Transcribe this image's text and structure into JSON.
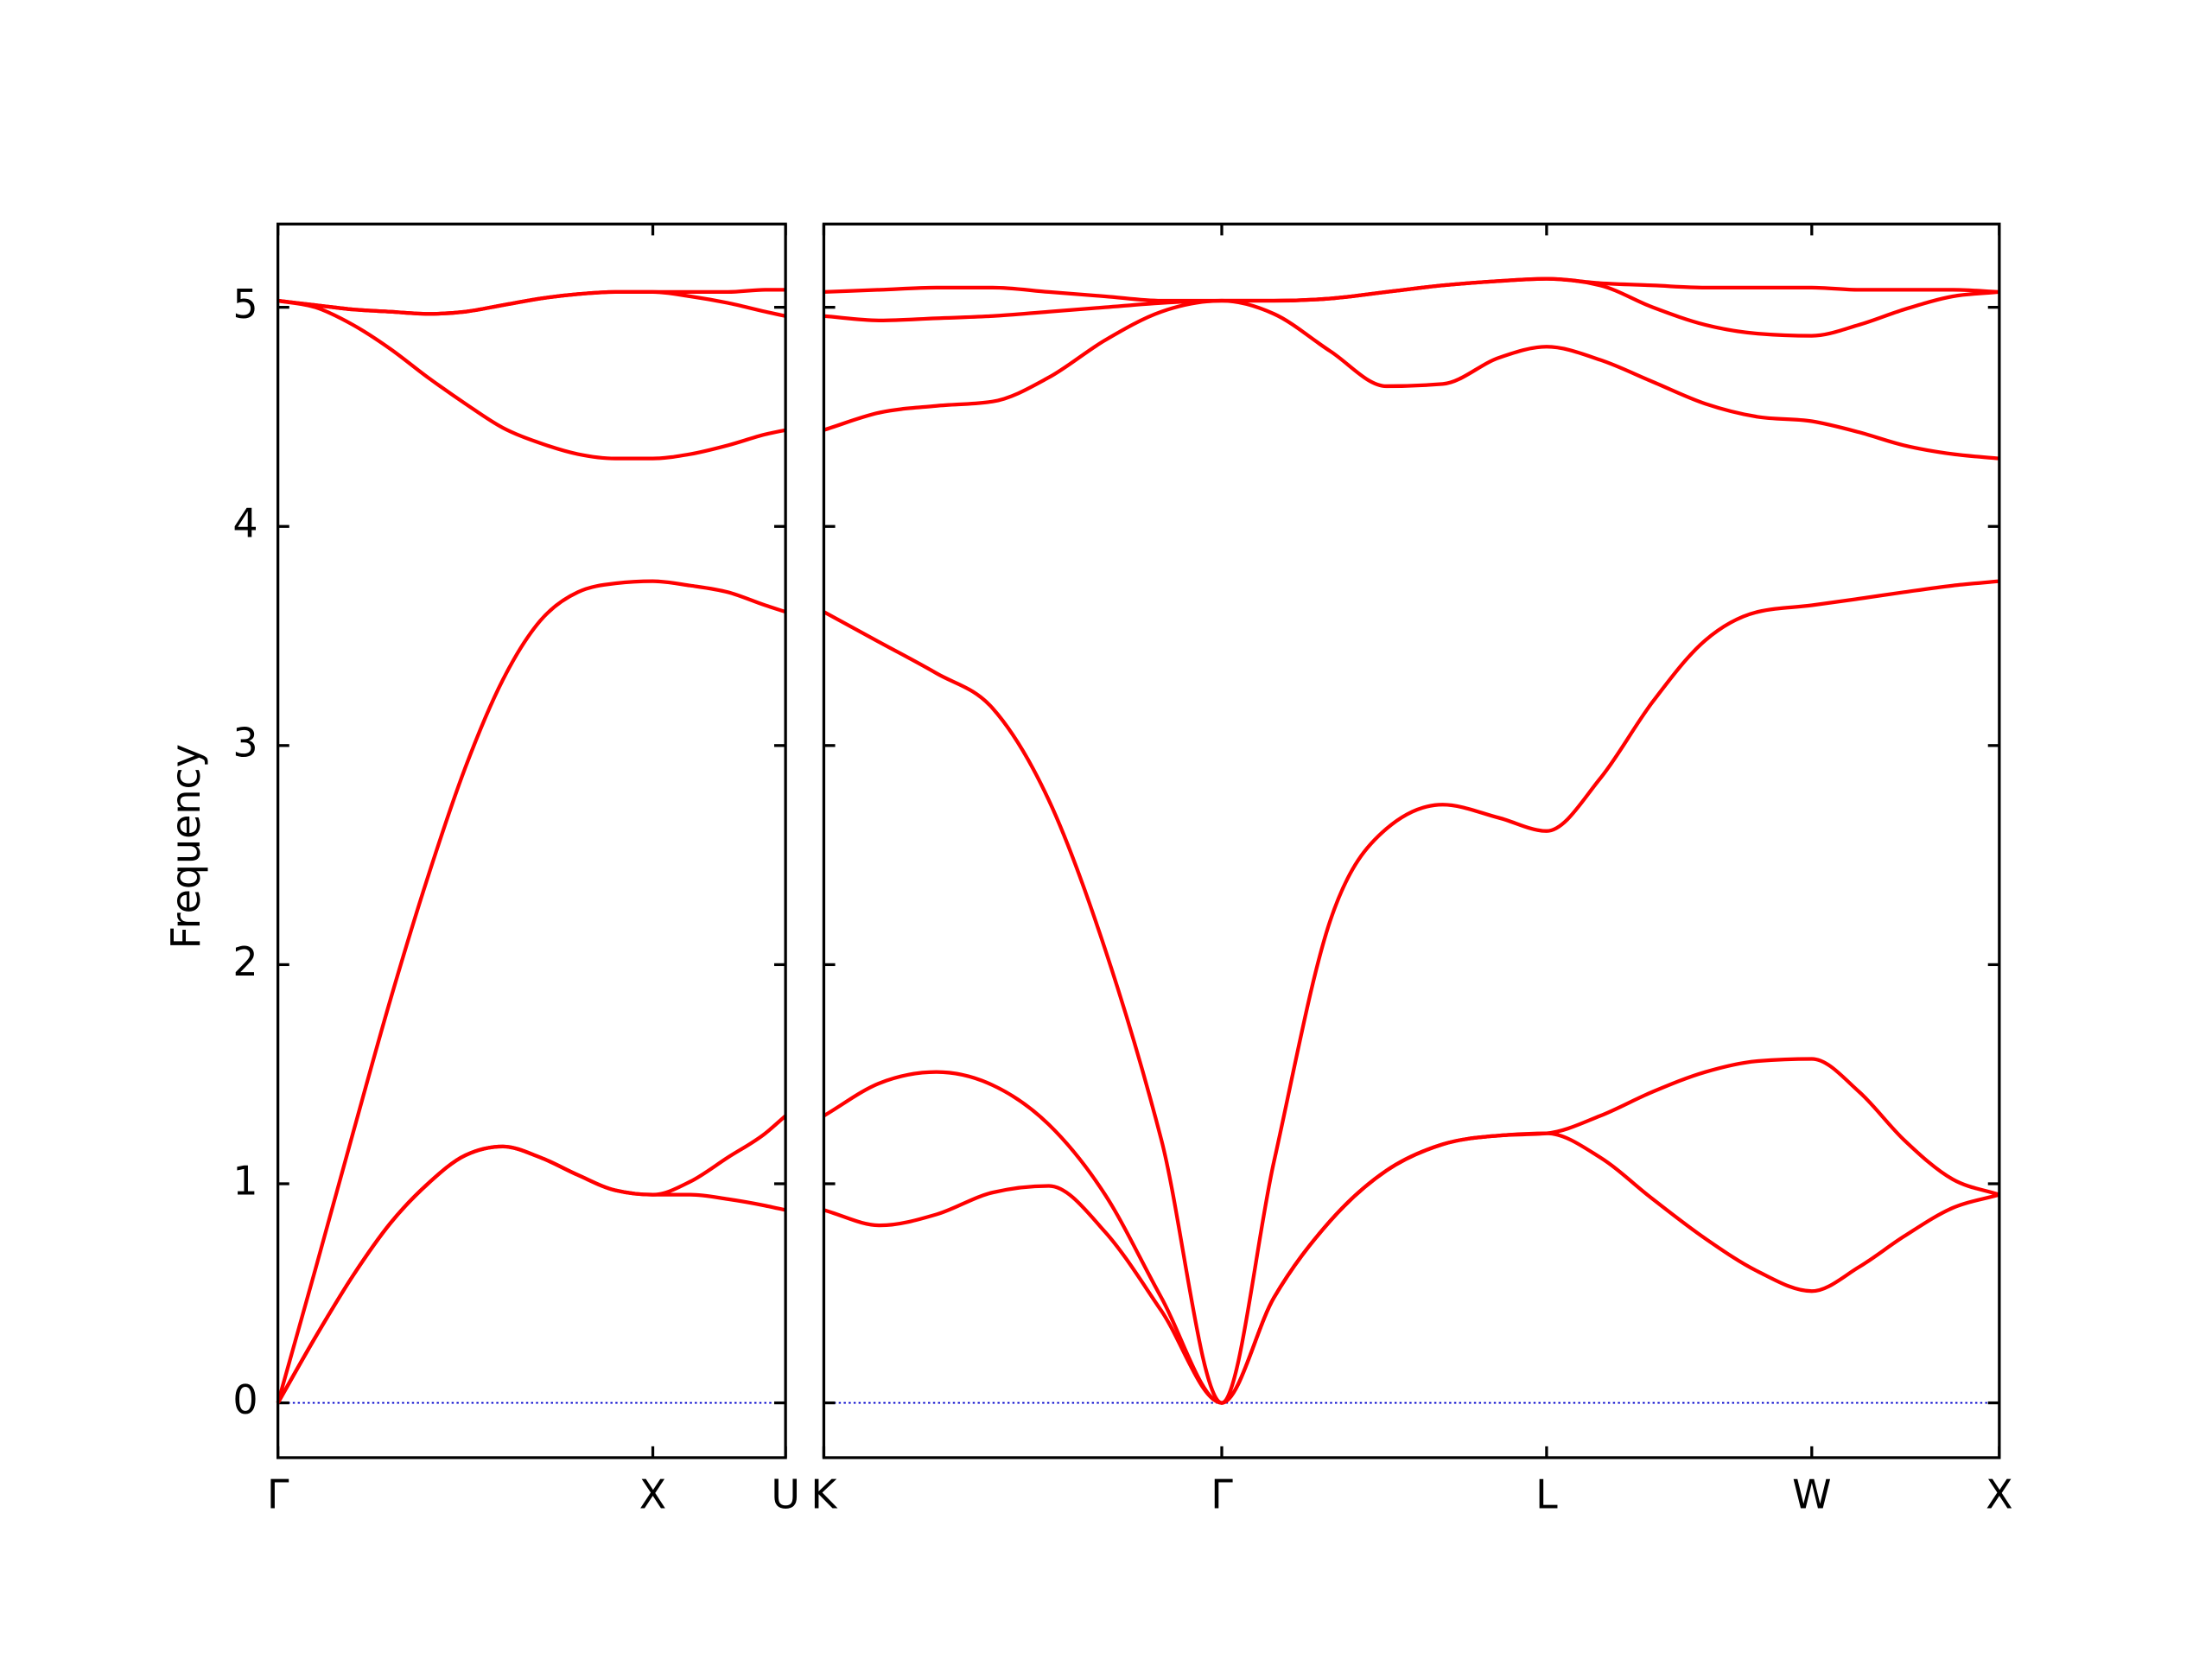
{
  "chart_data": [
    {
      "type": "line",
      "ylabel": "Frequency",
      "color": "#ff0000",
      "zero_line_color": "#0000cc",
      "ytick_labels": true,
      "x": [
        0,
        0.1,
        0.2,
        0.3,
        0.4,
        0.5,
        0.6,
        0.7,
        0.8,
        0.9,
        1,
        1.1,
        1.2,
        1.3,
        1.354
      ],
      "xlim": [
        0,
        1.354
      ],
      "ylim": [
        -0.25,
        5.38
      ],
      "xticks": [
        {
          "value": 0,
          "label": "Γ"
        },
        {
          "value": 1,
          "label": "X"
        },
        {
          "value": 1.354,
          "label": "U"
        }
      ],
      "yticks": [
        0,
        1,
        2,
        3,
        4,
        5
      ],
      "series": [
        {
          "values": [
            0,
            0.3,
            0.58,
            0.82,
            1.0,
            1.13,
            1.17,
            1.12,
            1.04,
            0.97,
            0.95,
            0.95,
            0.93,
            0.9,
            0.88
          ]
        },
        {
          "values": [
            0,
            0.3,
            0.58,
            0.82,
            1.0,
            1.13,
            1.17,
            1.12,
            1.04,
            0.97,
            0.95,
            1.01,
            1.12,
            1.23,
            1.31
          ]
        },
        {
          "values": [
            0,
            0.61,
            1.23,
            1.84,
            2.4,
            2.9,
            3.3,
            3.57,
            3.7,
            3.74,
            3.75,
            3.73,
            3.7,
            3.64,
            3.61
          ]
        },
        {
          "values": [
            5.03,
            5.0,
            4.92,
            4.81,
            4.68,
            4.56,
            4.45,
            4.38,
            4.33,
            4.31,
            4.31,
            4.33,
            4.37,
            4.42,
            4.44
          ]
        },
        {
          "values": [
            5.03,
            5.01,
            4.99,
            4.98,
            4.97,
            4.98,
            5.01,
            5.04,
            5.06,
            5.07,
            5.07,
            5.05,
            5.02,
            4.98,
            4.96
          ]
        },
        {
          "values": [
            5.03,
            5.01,
            4.99,
            4.98,
            4.97,
            4.98,
            5.01,
            5.04,
            5.06,
            5.07,
            5.07,
            5.07,
            5.07,
            5.08,
            5.08
          ]
        }
      ]
    },
    {
      "type": "line",
      "color": "#ff0000",
      "zero_line_color": "#0000cc",
      "ytick_labels": false,
      "x": [
        0,
        0.15,
        0.3,
        0.45,
        0.6,
        0.75,
        0.9,
        1.061,
        1.2,
        1.35,
        1.5,
        1.65,
        1.8,
        1.927,
        2.07,
        2.21,
        2.35,
        2.49,
        2.634,
        2.76,
        2.88,
        3.01,
        3.134
      ],
      "xlim": [
        0,
        3.134
      ],
      "ylim": [
        -0.25,
        5.38
      ],
      "xticks": [
        {
          "value": 0,
          "label": "K"
        },
        {
          "value": 1.061,
          "label": "Γ"
        },
        {
          "value": 1.927,
          "label": "L"
        },
        {
          "value": 2.634,
          "label": "W"
        },
        {
          "value": 3.134,
          "label": "X"
        }
      ],
      "yticks": [
        0,
        1,
        2,
        3,
        4,
        5
      ],
      "series": [
        {
          "values": [
            0.88,
            0.81,
            0.86,
            0.96,
            0.99,
            0.78,
            0.42,
            0,
            0.48,
            0.83,
            1.06,
            1.18,
            1.22,
            1.23,
            1.12,
            0.93,
            0.75,
            0.6,
            0.51,
            0.62,
            0.76,
            0.89,
            0.95
          ]
        },
        {
          "values": [
            1.31,
            1.46,
            1.51,
            1.45,
            1.27,
            0.95,
            0.48,
            0,
            0.48,
            0.83,
            1.06,
            1.18,
            1.22,
            1.23,
            1.31,
            1.42,
            1.51,
            1.56,
            1.57,
            1.42,
            1.2,
            1.02,
            0.95
          ]
        },
        {
          "values": [
            3.61,
            3.47,
            3.33,
            3.17,
            2.75,
            2.07,
            1.2,
            0,
            1.1,
            2.2,
            2.62,
            2.73,
            2.67,
            2.61,
            2.85,
            3.2,
            3.48,
            3.61,
            3.64,
            3.67,
            3.7,
            3.73,
            3.75
          ]
        },
        {
          "values": [
            4.44,
            4.52,
            4.55,
            4.57,
            4.68,
            4.85,
            4.98,
            5.03,
            4.97,
            4.8,
            4.64,
            4.65,
            4.77,
            4.82,
            4.76,
            4.66,
            4.56,
            4.5,
            4.48,
            4.43,
            4.37,
            4.33,
            4.31
          ]
        },
        {
          "values": [
            4.96,
            4.94,
            4.95,
            4.96,
            4.98,
            5.0,
            5.02,
            5.03,
            5.03,
            5.04,
            5.07,
            5.1,
            5.12,
            5.13,
            5.1,
            5.0,
            4.92,
            4.88,
            4.87,
            4.92,
            4.99,
            5.05,
            5.07
          ]
        },
        {
          "values": [
            5.07,
            5.08,
            5.09,
            5.09,
            5.07,
            5.05,
            5.03,
            5.03,
            5.03,
            5.04,
            5.07,
            5.1,
            5.12,
            5.13,
            5.11,
            5.1,
            5.09,
            5.09,
            5.09,
            5.08,
            5.08,
            5.08,
            5.07
          ]
        }
      ]
    }
  ]
}
